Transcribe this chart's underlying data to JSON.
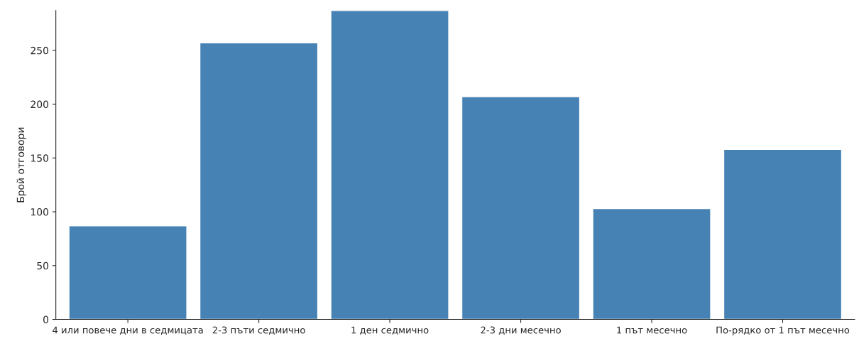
{
  "chart_data": {
    "type": "bar",
    "ylabel": "Брой отговори",
    "categories": [
      "4 или повече дни в седмицата",
      "2-3 пъти седмично",
      "1 ден седмично",
      "2-3 дни месечно",
      "1 път месечно",
      "По-рядко от 1 път месечно"
    ],
    "values": [
      87,
      257,
      287,
      207,
      103,
      158
    ],
    "color": "#4682b4",
    "ylim": [
      0,
      287
    ],
    "yticks": [
      0,
      50,
      100,
      150,
      200,
      250
    ],
    "grid": false,
    "legend": false
  }
}
